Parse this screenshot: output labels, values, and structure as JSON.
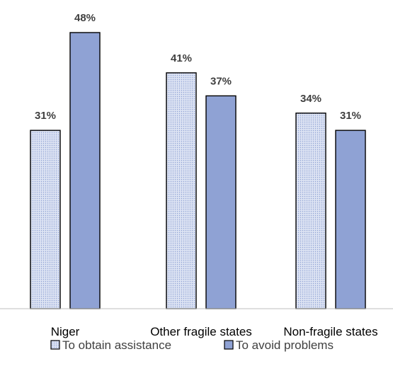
{
  "chart_data": {
    "type": "bar",
    "title": "",
    "xlabel": "",
    "ylabel": "",
    "categories": [
      "Niger",
      "Other fragile states",
      "Non-fragile states"
    ],
    "series": [
      {
        "name": "To obtain assistance",
        "values": [
          31,
          41,
          34
        ],
        "labels": [
          "31%",
          "41%",
          "34%"
        ],
        "color": "#dce3f3",
        "pattern": "dotted"
      },
      {
        "name": "To avoid problems",
        "values": [
          48,
          37,
          31
        ],
        "labels": [
          "48%",
          "37%",
          "31%"
        ],
        "color": "#8fa2d4",
        "pattern": "solid"
      }
    ],
    "ylim": [
      0,
      60
    ],
    "grid": false,
    "legend": "bottom"
  },
  "colors": {
    "bar_outline": "#000000",
    "axis": "#bfbfbf",
    "dot": "#8fa2d4"
  }
}
